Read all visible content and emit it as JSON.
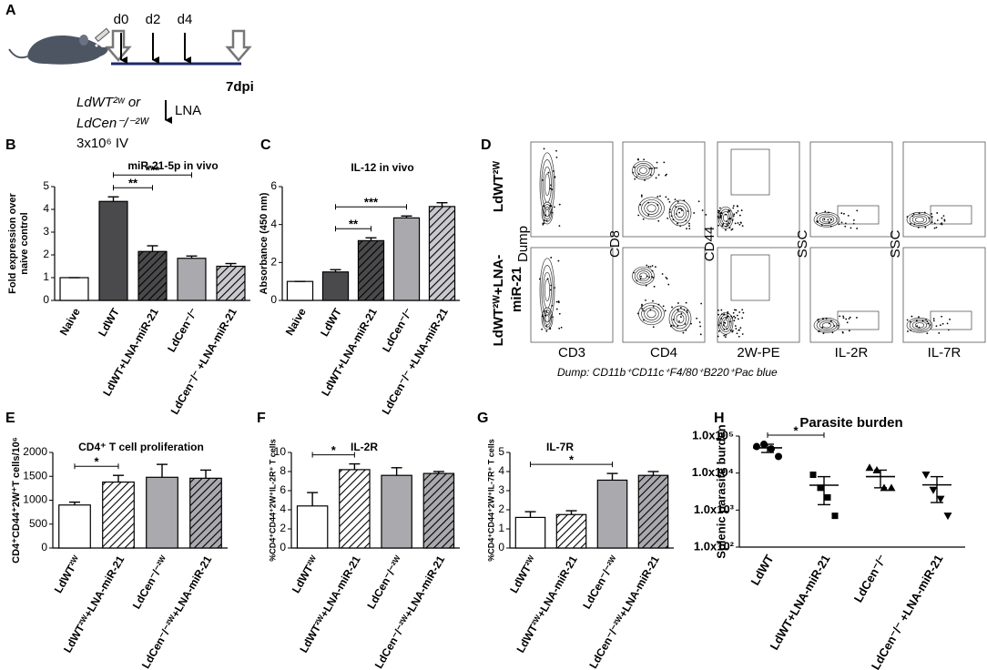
{
  "panel_labels": [
    "A",
    "B",
    "C",
    "D",
    "E",
    "F",
    "G",
    "H"
  ],
  "schematic": {
    "days": [
      "d0",
      "d2",
      "d4"
    ],
    "end": "7dpi",
    "strains": [
      "LdWT²ʷ or",
      "LdCen⁻/⁻²ᵂ"
    ],
    "treatment": "LNA",
    "dose": "3x10⁶ IV"
  },
  "flow": {
    "rows": [
      [
        "LdWT²ᵂ"
      ],
      [
        "LdWT²ᵂ+LNA-",
        "miR-21"
      ]
    ],
    "y_labels": [
      "Dump",
      "CD8",
      "CD44",
      "SSC",
      "SSC"
    ],
    "x_labels": [
      "CD3",
      "CD4",
      "2W-PE",
      "IL-2R",
      "IL-7R"
    ],
    "caption": "Dump: CD11b⁺CD11c⁺F4/80⁺B220⁺Pac blue"
  },
  "chart_data": [
    {
      "type": "bar",
      "title": "miR-21-5p in vivo",
      "ylabel": [
        "Fold expression over",
        "naive control"
      ],
      "categories": [
        "Naive",
        "LdWT",
        "LdWT+LNA-miR-21",
        "LdCen⁻/⁻",
        "LdCen⁻/⁻ +LNA-miR-21"
      ],
      "values": [
        1,
        4.35,
        2.15,
        1.85,
        1.5
      ],
      "errors": [
        0,
        0.2,
        0.25,
        0.1,
        0.12
      ],
      "colors": [
        "#ffffff",
        "#4a4a4c",
        "#4a4a4c",
        "#a9a9ae",
        "#c9c9ce"
      ],
      "hatch": [
        false,
        false,
        true,
        false,
        true
      ],
      "ylim": [
        0,
        5
      ],
      "yticks": [
        0,
        1,
        2,
        3,
        4,
        5
      ],
      "significance": [
        {
          "from": 1,
          "to": 2,
          "label": "**"
        },
        {
          "from": 1,
          "to": 3,
          "label": "***"
        }
      ]
    },
    {
      "type": "bar",
      "title": "IL-12 in vivo",
      "ylabel": "Absorbance (450 nm)",
      "categories": [
        "Naive",
        "LdWT",
        "LdWT+LNA-miR-21",
        "LdCen⁻/⁻",
        "LdCen⁻/⁻ +LNA-miR-21"
      ],
      "values": [
        1.0,
        1.5,
        3.15,
        4.35,
        4.95
      ],
      "errors": [
        0,
        0.12,
        0.15,
        0.1,
        0.2
      ],
      "colors": [
        "#ffffff",
        "#4a4a4c",
        "#4a4a4c",
        "#a9a9ae",
        "#c9c9ce"
      ],
      "hatch": [
        false,
        false,
        true,
        false,
        true
      ],
      "ylim": [
        0,
        6
      ],
      "yticks": [
        0,
        2,
        4,
        6
      ],
      "significance": [
        {
          "from": 1,
          "to": 2,
          "label": "**"
        },
        {
          "from": 1,
          "to": 3,
          "label": "***"
        }
      ]
    },
    {
      "type": "bar",
      "title": "CD4⁺ T cell proliferation",
      "ylabel": "CD4⁺CD44⁺2W⁺T cells/10⁶",
      "categories": [
        "LdWT²ᵂ",
        "LdWT²ᵂ+LNA-miR-21",
        "LdCen⁻/⁻²ᵂ",
        "LdCen⁻/⁻²ᵂ+LNA-miR-21"
      ],
      "values": [
        900,
        1380,
        1480,
        1460
      ],
      "errors": [
        60,
        140,
        270,
        170
      ],
      "colors": [
        "#ffffff",
        "#ffffff",
        "#a9a9ae",
        "#a9a9ae"
      ],
      "hatch": [
        false,
        true,
        false,
        true
      ],
      "ylim": [
        0,
        2000
      ],
      "yticks": [
        0,
        500,
        1000,
        1500,
        2000
      ],
      "significance": [
        {
          "from": 0,
          "to": 1,
          "label": "*"
        }
      ]
    },
    {
      "type": "bar",
      "title": "IL-2R",
      "ylabel": "%CD4⁺CD44⁺2W⁺IL-2R⁺ T cells",
      "categories": [
        "LdWT²ᵂ",
        "LdWT²ᵂ+LNA-miR-21",
        "LdCen⁻/⁻²ᵂ",
        "LdCen⁻/⁻²ᵂ+LNA-miR-21"
      ],
      "values": [
        4.4,
        8.2,
        7.6,
        7.8
      ],
      "errors": [
        1.4,
        0.6,
        0.8,
        0.2
      ],
      "colors": [
        "#ffffff",
        "#ffffff",
        "#a9a9ae",
        "#a9a9ae"
      ],
      "hatch": [
        false,
        true,
        false,
        true
      ],
      "ylim": [
        0,
        10
      ],
      "yticks": [
        0,
        2,
        4,
        6,
        8,
        10
      ],
      "significance": [
        {
          "from": 0,
          "to": 1,
          "label": "*"
        }
      ]
    },
    {
      "type": "bar",
      "title": "IL-7R",
      "ylabel": "%CD4⁺CD44⁺2W⁺IL-7R⁺ T cells",
      "categories": [
        "LdWT²ᵂ",
        "LdWT²ᵂ+LNA-miR-21",
        "LdCen⁻/⁻²ᵂ",
        "LdCen⁻/⁻²ᵂ+LNA-miR-21"
      ],
      "values": [
        1.6,
        1.75,
        3.55,
        3.8
      ],
      "errors": [
        0.3,
        0.2,
        0.35,
        0.2
      ],
      "colors": [
        "#ffffff",
        "#ffffff",
        "#a9a9ae",
        "#a9a9ae"
      ],
      "hatch": [
        false,
        true,
        false,
        true
      ],
      "ylim": [
        0,
        5
      ],
      "yticks": [
        0,
        1,
        2,
        3,
        4,
        5
      ],
      "significance": [
        {
          "from": 0,
          "to": 2,
          "label": "*"
        }
      ]
    },
    {
      "type": "scatter",
      "title": "Parasite burden",
      "ylabel": "Splenic parasite burden",
      "categories": [
        "LdWT",
        "LdWT+LNA-miR-21",
        "LdCen⁻/⁻",
        "LdCen⁻/⁻ +LNA-miR-21"
      ],
      "points": [
        [
          52000,
          60000,
          45000,
          28000
        ],
        [
          9000,
          4000,
          2200,
          700
        ],
        [
          14000,
          12000,
          4000,
          4000
        ],
        [
          9000,
          3500,
          2000,
          700
        ]
      ],
      "means": [
        48000,
        4700,
        8000,
        4800
      ],
      "errors": [
        12000,
        3300,
        4000,
        3200
      ],
      "markers": [
        "circle",
        "square",
        "triangle",
        "triangle-down"
      ],
      "color": "#000000",
      "log_y": true,
      "ylim": [
        100,
        100000
      ],
      "yticks": [
        {
          "value": 100,
          "label": "1.0x10²"
        },
        {
          "value": 1000,
          "label": "1.0x10³"
        },
        {
          "value": 10000,
          "label": "1.0x10⁴"
        },
        {
          "value": 100000,
          "label": "1.0x10⁵"
        }
      ],
      "significance": [
        {
          "from": 0,
          "to": 1,
          "label": "*"
        }
      ]
    }
  ]
}
